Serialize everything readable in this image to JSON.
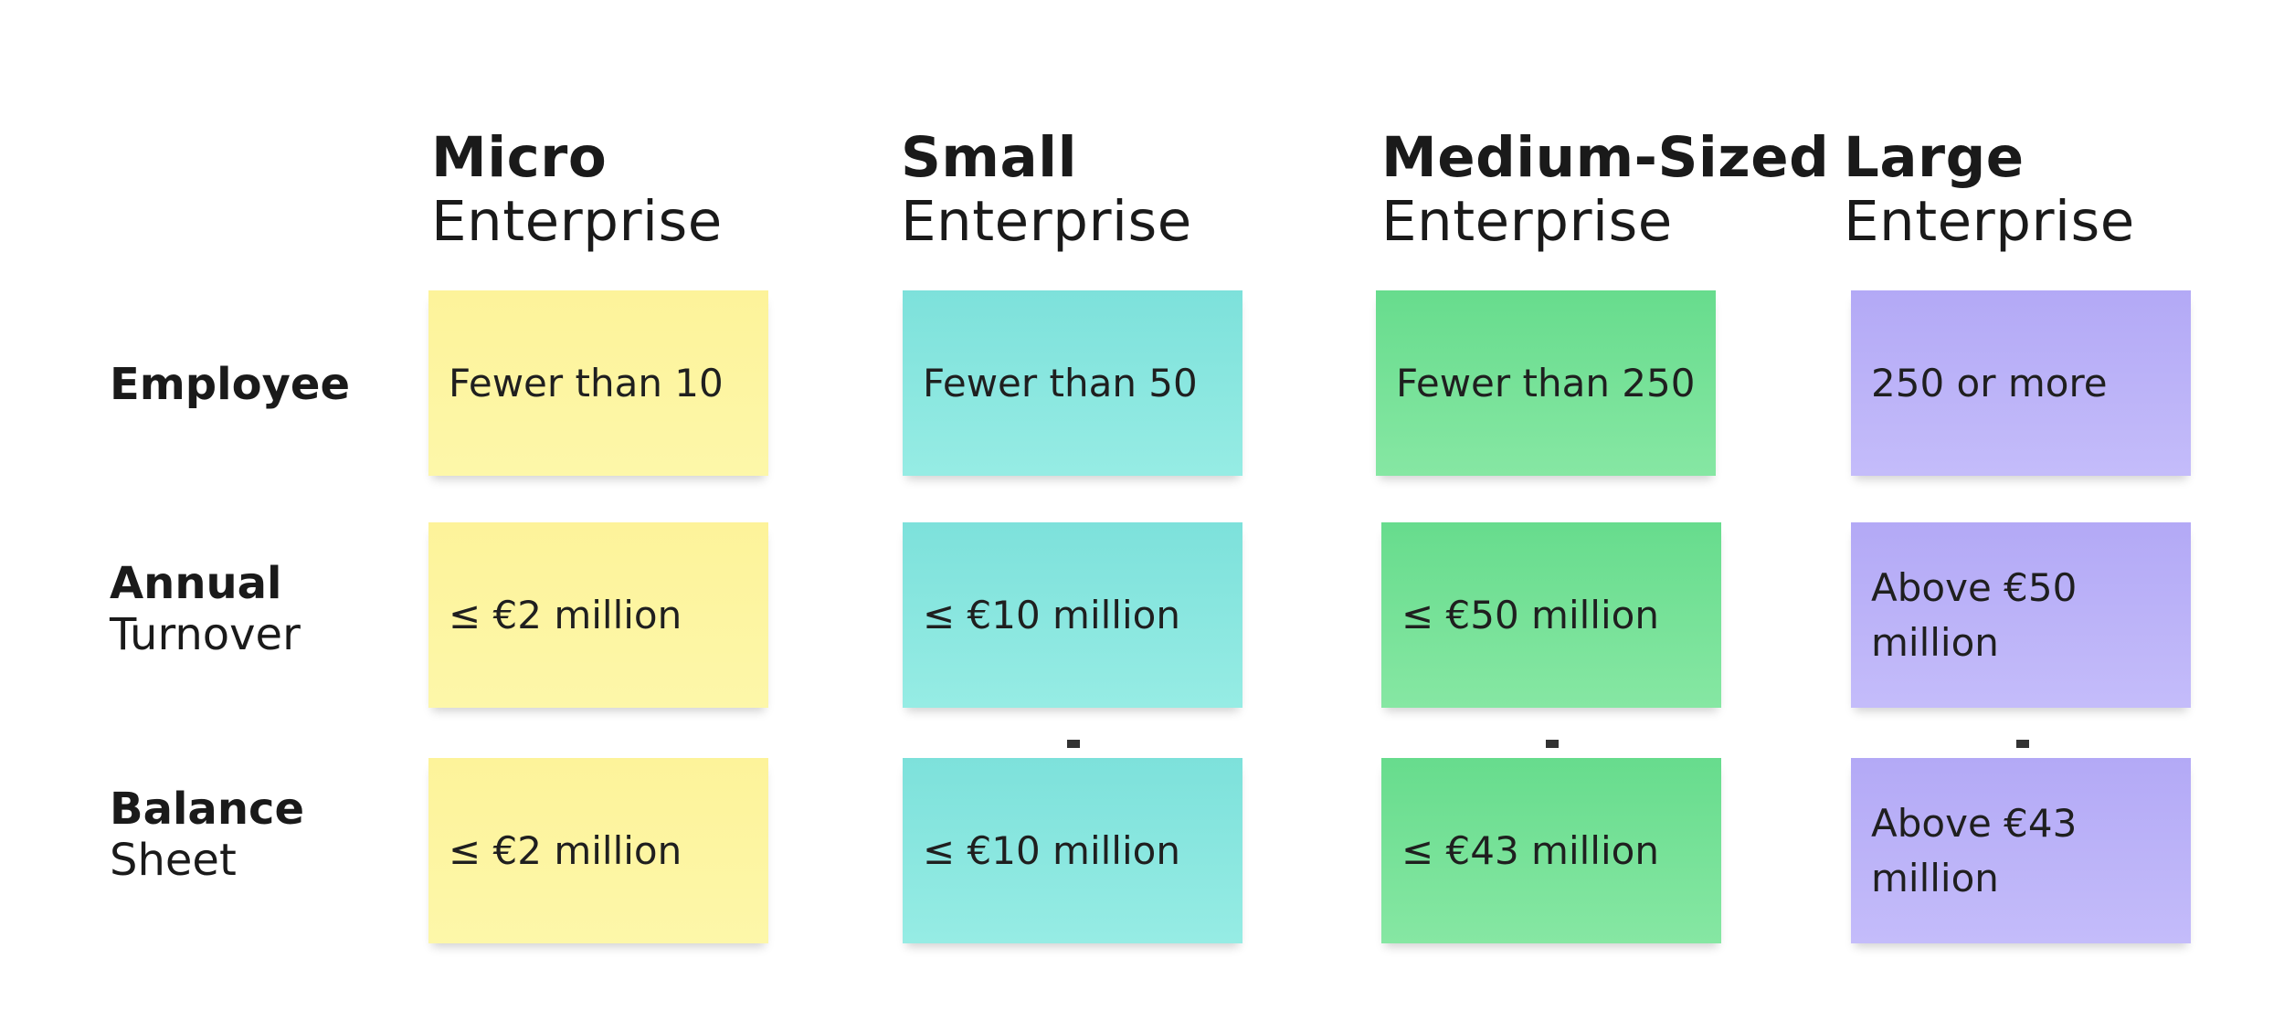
{
  "columns": [
    {
      "line1": "Micro",
      "line2": "Enterprise"
    },
    {
      "line1": "Small",
      "line2": "Enterprise"
    },
    {
      "line1": "Medium-Sized",
      "line2": "Enterprise"
    },
    {
      "line1": "Large",
      "line2": "Enterprise"
    }
  ],
  "rows": [
    {
      "line1": "Employee",
      "line2": ""
    },
    {
      "line1": "Annual",
      "line2": "Turnover"
    },
    {
      "line1": "Balance",
      "line2": "Sheet"
    }
  ],
  "cells": {
    "employee": [
      "Fewer than 10",
      "Fewer than 50",
      "Fewer than 250",
      "250 or more"
    ],
    "turnover": [
      "≤ €2 million",
      "≤ €10 million",
      "≤ €50 million",
      "Above €50 million"
    ],
    "balance": [
      "≤ €2 million",
      "≤ €10 million",
      "≤ €43 million",
      "Above €43 million"
    ]
  },
  "colors": {
    "micro": "#fdf39a",
    "small": "#7de1db",
    "medium": "#67dc8d",
    "large": "#b3a9f6",
    "text": "#1a1a1a"
  }
}
